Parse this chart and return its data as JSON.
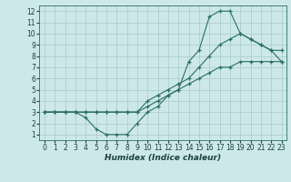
{
  "bg_color": "#cde8e8",
  "grid_color": "#aecece",
  "line_color": "#2a7060",
  "xlim": [
    -0.5,
    23.5
  ],
  "ylim": [
    0.5,
    12.5
  ],
  "xlabel": "Humidex (Indice chaleur)",
  "xticks": [
    0,
    1,
    2,
    3,
    4,
    5,
    6,
    7,
    8,
    9,
    10,
    11,
    12,
    13,
    14,
    15,
    16,
    17,
    18,
    19,
    20,
    21,
    22,
    23
  ],
  "yticks": [
    1,
    2,
    3,
    4,
    5,
    6,
    7,
    8,
    9,
    10,
    11,
    12
  ],
  "line1_x": [
    0,
    1,
    2,
    3,
    4,
    5,
    6,
    7,
    8,
    9,
    10,
    11,
    12,
    13,
    14,
    15,
    16,
    17,
    18,
    19,
    20,
    21,
    22,
    23
  ],
  "line1_y": [
    3,
    3,
    3,
    3,
    2.5,
    1.5,
    1,
    1,
    1,
    2,
    3,
    3.5,
    4.5,
    5,
    7.5,
    8.5,
    11.5,
    12,
    12,
    10,
    9.5,
    9,
    8.5,
    8.5
  ],
  "line2_x": [
    0,
    1,
    2,
    3,
    4,
    5,
    6,
    7,
    8,
    9,
    10,
    11,
    12,
    13,
    14,
    15,
    16,
    17,
    18,
    19,
    20,
    21,
    22,
    23
  ],
  "line2_y": [
    3,
    3,
    3,
    3,
    3,
    3,
    3,
    3,
    3,
    3,
    4,
    4.5,
    5,
    5.5,
    6,
    7,
    8,
    9,
    9.5,
    10,
    9.5,
    9,
    8.5,
    7.5
  ],
  "line3_x": [
    0,
    1,
    2,
    3,
    4,
    5,
    6,
    7,
    8,
    9,
    10,
    11,
    12,
    13,
    14,
    15,
    16,
    17,
    18,
    19,
    20,
    21,
    22,
    23
  ],
  "line3_y": [
    3,
    3,
    3,
    3,
    3,
    3,
    3,
    3,
    3,
    3,
    3.5,
    4,
    4.5,
    5,
    5.5,
    6,
    6.5,
    7,
    7,
    7.5,
    7.5,
    7.5,
    7.5,
    7.5
  ],
  "tick_fontsize": 5.5,
  "xlabel_fontsize": 6.5
}
